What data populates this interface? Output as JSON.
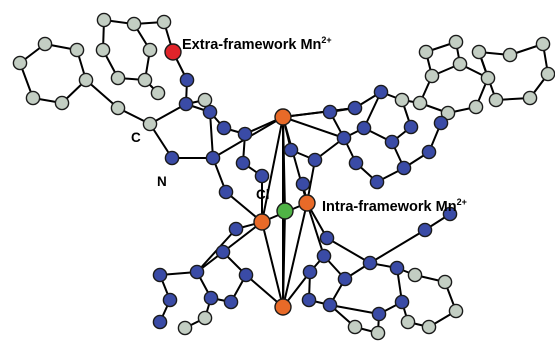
{
  "labels": {
    "extra_framework": {
      "text": "Extra-framework Mn",
      "charge": "2+"
    },
    "intra_framework": {
      "text": "Intra-framework Mn",
      "charge": "2+"
    },
    "carbon": "C",
    "nitrogen": "N",
    "chlorine": "Cl"
  },
  "colors": {
    "carbon": "#c3cec3",
    "nitrogen": "#3a4ba6",
    "manganese": "#e86a28",
    "extra_framework_mn": "#e0242a",
    "chlorine": "#4fb345",
    "bond": "#000000"
  }
}
